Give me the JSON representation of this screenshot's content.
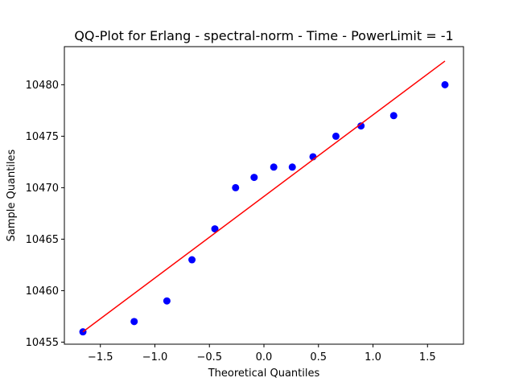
{
  "chart_data": {
    "type": "scatter",
    "title": "QQ-Plot for Erlang - spectral-norm - Time - PowerLimit = -1",
    "xlabel": "Theoretical Quantiles",
    "ylabel": "Sample Quantiles",
    "xlim": [
      -1.83,
      1.83
    ],
    "ylim": [
      10454.8,
      10483.7
    ],
    "xticks": [
      -1.5,
      -1.0,
      -0.5,
      0.0,
      0.5,
      1.0,
      1.5
    ],
    "xtick_labels": [
      "−1.5",
      "−1.0",
      "−0.5",
      "0.0",
      "0.5",
      "1.0",
      "1.5"
    ],
    "yticks": [
      10455,
      10460,
      10465,
      10470,
      10475,
      10480
    ],
    "ytick_labels": [
      "10455",
      "10460",
      "10465",
      "10470",
      "10475",
      "10480"
    ],
    "grid": false,
    "series": [
      {
        "kind": "points",
        "color": "#0000ff",
        "x": [
          -1.66,
          -1.19,
          -0.89,
          -0.66,
          -0.45,
          -0.26,
          -0.09,
          0.09,
          0.26,
          0.45,
          0.66,
          0.89,
          1.19,
          1.66
        ],
        "y": [
          10456,
          10457,
          10459,
          10463,
          10466,
          10470,
          10471,
          10472,
          10472,
          10473,
          10475,
          10476,
          10477,
          10480
        ]
      },
      {
        "kind": "line",
        "color": "#ff0000",
        "x": [
          -1.66,
          1.66
        ],
        "y": [
          10456.0,
          10482.3
        ]
      }
    ]
  }
}
